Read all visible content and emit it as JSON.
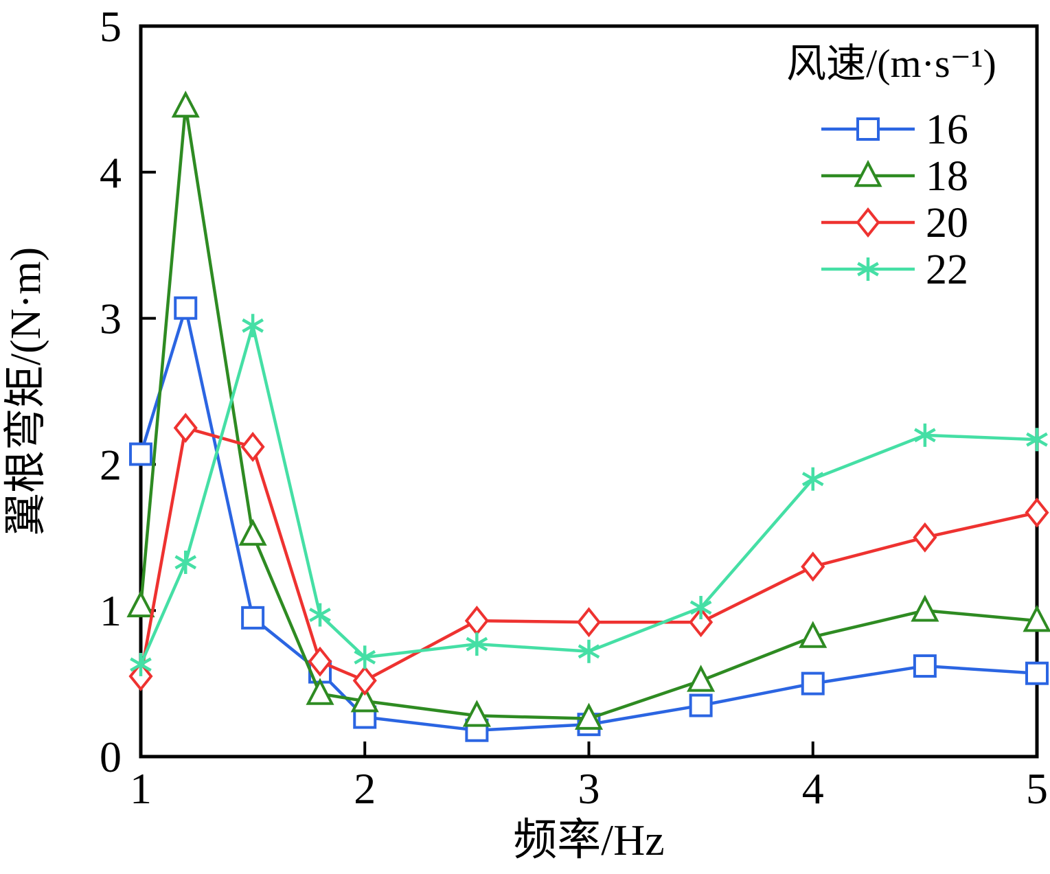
{
  "chart_data": {
    "type": "line",
    "title": "",
    "xlabel": "频率/Hz",
    "ylabel": "翼根弯矩/(N·m)",
    "legend_title": "风速/(m·s⁻¹)",
    "legend_position": "top-right",
    "grid": false,
    "xlim": [
      1,
      5
    ],
    "ylim": [
      0,
      5
    ],
    "xticks": [
      1,
      2,
      3,
      4,
      5
    ],
    "yticks": [
      0,
      1,
      2,
      3,
      4,
      5
    ],
    "x": [
      1,
      1.2,
      1.5,
      1.8,
      2,
      2.5,
      3,
      3.5,
      4,
      4.5,
      5
    ],
    "series": [
      {
        "name": "16",
        "color": "#2B65E2",
        "marker": "square",
        "values": [
          2.07,
          3.07,
          0.95,
          0.58,
          0.27,
          0.18,
          0.22,
          0.35,
          0.5,
          0.62,
          0.57
        ]
      },
      {
        "name": "18",
        "color": "#2E8B22",
        "marker": "triangle",
        "values": [
          1.03,
          4.45,
          1.52,
          0.43,
          0.38,
          0.28,
          0.26,
          0.52,
          0.82,
          1.0,
          0.93
        ]
      },
      {
        "name": "20",
        "color": "#EE3230",
        "marker": "diamond",
        "values": [
          0.55,
          2.25,
          2.12,
          0.65,
          0.52,
          0.93,
          0.92,
          0.92,
          1.3,
          1.5,
          1.67
        ]
      },
      {
        "name": "22",
        "color": "#45DFA5",
        "marker": "asterisk",
        "values": [
          0.63,
          1.33,
          2.95,
          0.97,
          0.68,
          0.77,
          0.72,
          1.02,
          1.9,
          2.2,
          2.17
        ]
      }
    ],
    "axis_color": "#000000",
    "background_color": "#ffffff"
  }
}
